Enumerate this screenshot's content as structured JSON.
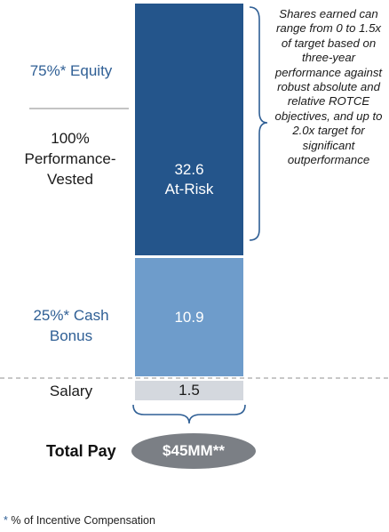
{
  "chart_data": {
    "type": "bar",
    "stacked": true,
    "unit": "$MM",
    "segments": [
      {
        "name": "Salary",
        "value": 1.5,
        "color": "#d4d8de",
        "value_label": "1.5"
      },
      {
        "name": "25%* Cash Bonus",
        "value": 10.9,
        "color": "#6e9ccb",
        "value_label": "10.9"
      },
      {
        "name": "75%* Equity",
        "value": 32.6,
        "color": "#24558b",
        "value_label": "32.6\nAt-Risk"
      }
    ]
  },
  "labels": {
    "equity": "75%* Equity",
    "performance": "100%\nPerformance-\nVested",
    "cash_bonus": "25%* Cash\nBonus",
    "salary": "Salary",
    "total_pay": "Total Pay"
  },
  "note": "Shares earned can range from 0 to 1.5x of target based on three-year performance against robust absolute and relative ROTCE objectives, and up to 2.0x target for significant outperformance",
  "total": {
    "value_label": "$45MM**",
    "color": "#7b7f85"
  },
  "footnote": {
    "star": "*",
    "text": " % of Incentive Compensation"
  }
}
